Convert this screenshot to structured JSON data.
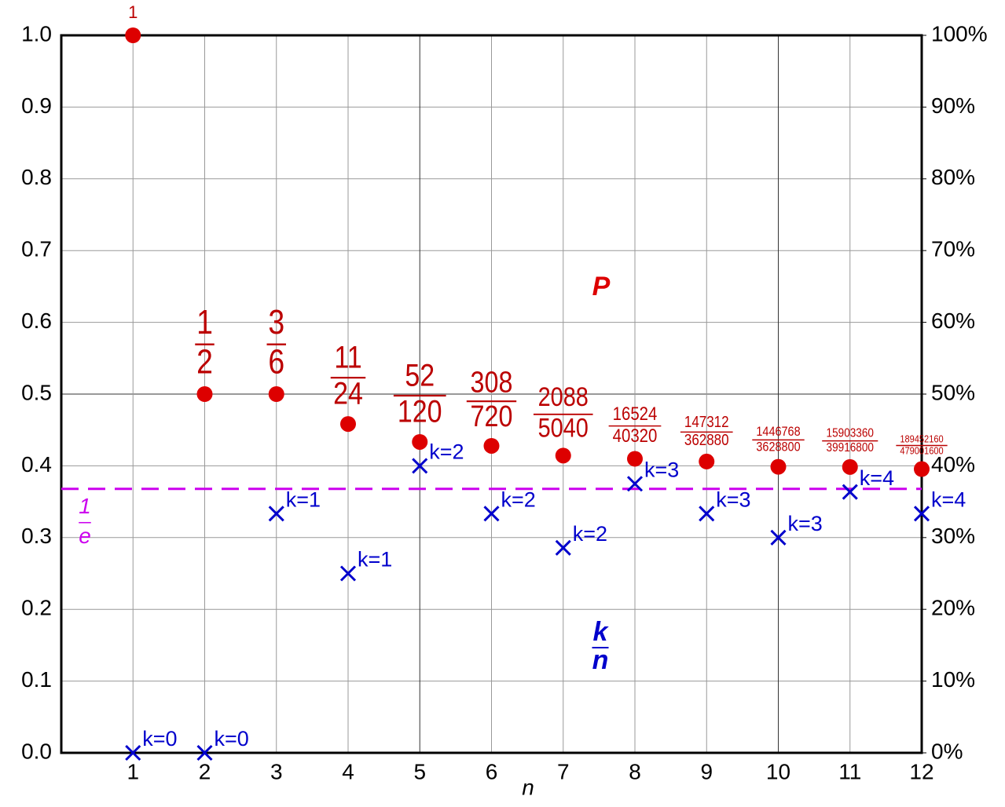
{
  "chart_data": {
    "type": "scatter",
    "x_label": "n",
    "x": [
      1,
      2,
      3,
      4,
      5,
      6,
      7,
      8,
      9,
      10,
      11,
      12
    ],
    "xlim": [
      0,
      12
    ],
    "xticks": [
      1,
      2,
      3,
      4,
      5,
      6,
      7,
      8,
      9,
      10,
      11,
      12
    ],
    "ylim": [
      0,
      1
    ],
    "yticks": [
      {
        "value": 0,
        "label": "0.0"
      },
      0.1,
      0.2,
      0.3,
      0.4,
      0.5,
      0.6,
      0.7,
      0.8,
      0.9,
      {
        "value": 1,
        "label": "1.0"
      }
    ],
    "y2lim": [
      0,
      100
    ],
    "y2ticks": [
      {
        "value": 0,
        "label": "0%"
      },
      {
        "value": 10,
        "label": "10%"
      },
      {
        "value": 20,
        "label": "20%"
      },
      {
        "value": 30,
        "label": "30%"
      },
      {
        "value": 40,
        "label": "40%"
      },
      {
        "value": 50,
        "label": "50%"
      },
      {
        "value": 60,
        "label": "60%"
      },
      {
        "value": 70,
        "label": "70%"
      },
      {
        "value": 80,
        "label": "80%"
      },
      {
        "value": 90,
        "label": "90%"
      },
      {
        "value": 100,
        "label": "100%"
      }
    ],
    "grid": true,
    "series": [
      {
        "name": "P",
        "color": "#dd0000",
        "label_color": "#bb0000",
        "marker": "circle",
        "values": [
          1,
          0.5,
          0.5,
          0.4583,
          0.4333,
          0.4278,
          0.4143,
          0.4098,
          0.406,
          0.3987,
          0.3984,
          0.3955
        ],
        "value_labels": [
          {
            "numerator": "1"
          },
          {
            "numerator": "1",
            "denominator": "2"
          },
          {
            "numerator": "3",
            "denominator": "6"
          },
          {
            "numerator": "11",
            "denominator": "24"
          },
          {
            "numerator": "52",
            "denominator": "120"
          },
          {
            "numerator": "308",
            "denominator": "720"
          },
          {
            "numerator": "2088",
            "denominator": "5040"
          },
          {
            "numerator": "16524",
            "denominator": "40320"
          },
          {
            "numerator": "147312",
            "denominator": "362880"
          },
          {
            "numerator": "1446768",
            "denominator": "3628800"
          },
          {
            "numerator": "15903360",
            "denominator": "39916800"
          },
          {
            "numerator": "189452160",
            "denominator": "479001600"
          }
        ]
      },
      {
        "name": {
          "numerator": "k",
          "denominator": "n"
        },
        "color": "#0000cc",
        "marker": "x",
        "values": [
          0,
          0,
          0.3333,
          0.25,
          0.4,
          0.3333,
          0.2857,
          0.375,
          0.3333,
          0.3,
          0.3636,
          0.3333
        ],
        "point_labels": [
          "k=0",
          "k=0",
          "k=1",
          "k=1",
          "k=2",
          "k=2",
          "k=2",
          "k=3",
          "k=3",
          "k=3",
          "k=4",
          "k=4"
        ]
      }
    ],
    "reference_line": {
      "value": 0.3679,
      "color": "#cc00ee",
      "label": {
        "numerator": "1",
        "denominator": "e"
      }
    }
  }
}
